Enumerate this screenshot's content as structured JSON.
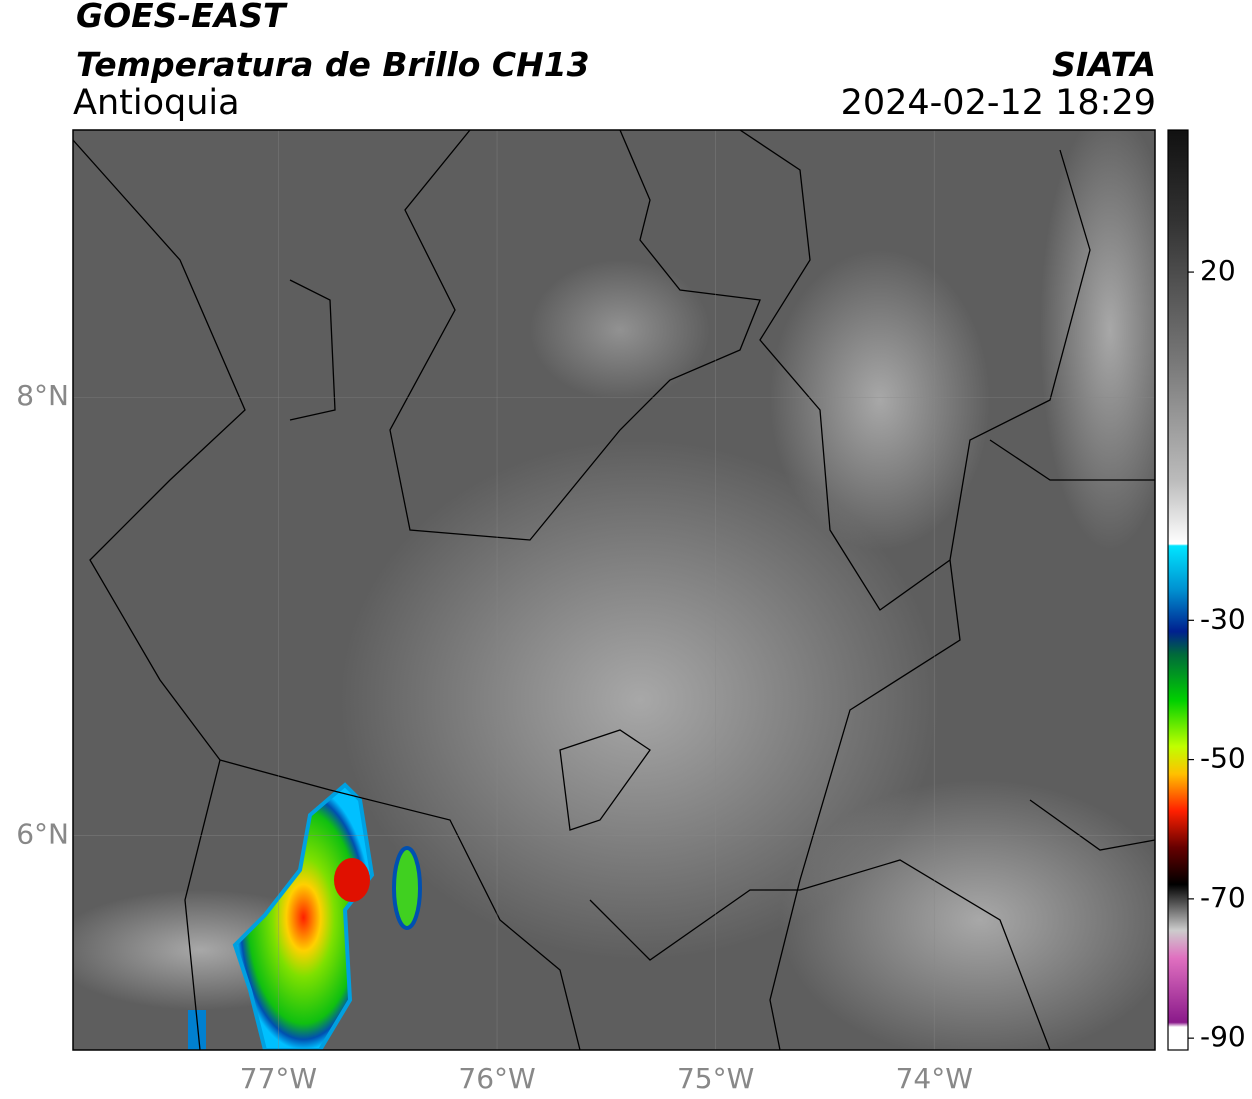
{
  "header": {
    "title": "GOES-EAST",
    "subtitle": "Temperatura de Brillo CH13",
    "region": "Antioquia",
    "source": "SIATA",
    "datetime": "2024-02-12 18:29"
  },
  "map": {
    "xlim": [
      -77.94,
      -72.99
    ],
    "ylim": [
      5.02,
      9.22
    ],
    "xticks": [
      {
        "value": -77,
        "label": "77°W"
      },
      {
        "value": -76,
        "label": "76°W"
      },
      {
        "value": -75,
        "label": "75°W"
      },
      {
        "value": -74,
        "label": "74°W"
      }
    ],
    "yticks": [
      {
        "value": 8,
        "label": "8°N"
      },
      {
        "value": 6,
        "label": "6°N"
      }
    ]
  },
  "colorbar": {
    "range": [
      -91.7,
      40.4
    ],
    "ticks": [
      20,
      -30,
      -50,
      -70,
      -90
    ]
  }
}
